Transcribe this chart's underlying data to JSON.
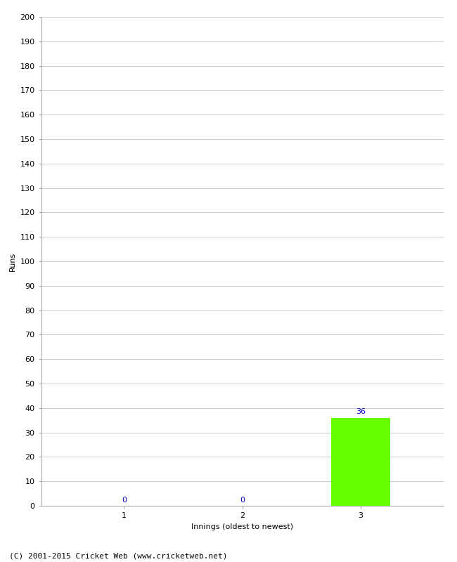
{
  "xlabel": "Innings (oldest to newest)",
  "ylabel": "Runs",
  "categories": [
    1,
    2,
    3
  ],
  "values": [
    0,
    0,
    36
  ],
  "bar_colors": [
    "#66ff00",
    "#66ff00",
    "#66ff00"
  ],
  "ylim": [
    0,
    200
  ],
  "yticks": [
    0,
    10,
    20,
    30,
    40,
    50,
    60,
    70,
    80,
    90,
    100,
    110,
    120,
    130,
    140,
    150,
    160,
    170,
    180,
    190,
    200
  ],
  "value_labels": [
    "0",
    "0",
    "36"
  ],
  "value_label_color": "#0000cc",
  "footer": "(C) 2001-2015 Cricket Web (www.cricketweb.net)",
  "grid_color": "#cccccc",
  "background_color": "#ffffff",
  "bar_width": 0.5,
  "label_fontsize": 8,
  "tick_fontsize": 8,
  "ylabel_fontsize": 8,
  "xlabel_fontsize": 8,
  "footer_fontsize": 8
}
